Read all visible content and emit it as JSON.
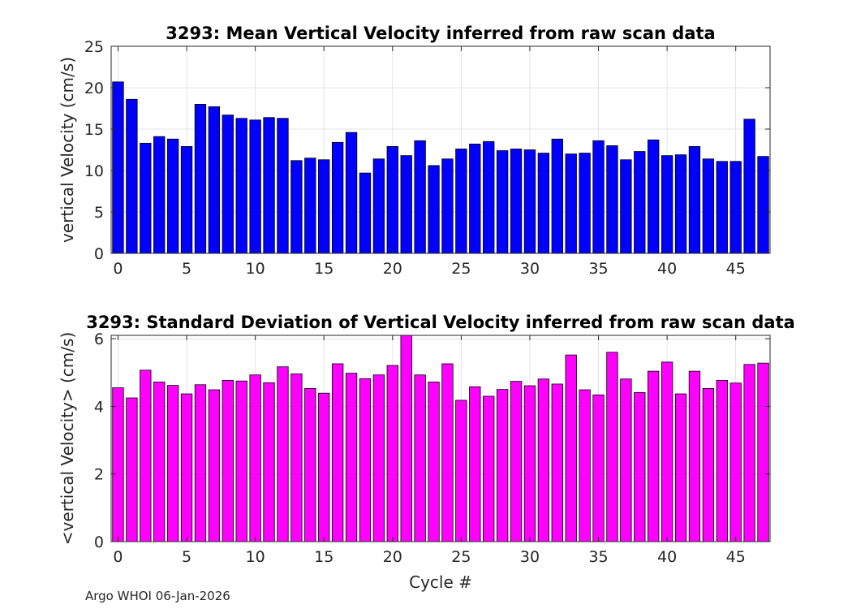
{
  "footer": "Argo WHOI 06-Jan-2026",
  "chart_data": [
    {
      "type": "bar",
      "title": "3293: Mean Vertical Velocity inferred from raw scan data",
      "xlabel": "",
      "ylabel": "vertical Velocity (cm/s)",
      "ylim": [
        0,
        25
      ],
      "xlim": [
        -0.5,
        47.5
      ],
      "yticks": [
        0,
        5,
        10,
        15,
        20,
        25
      ],
      "xticks": [
        0,
        5,
        10,
        15,
        20,
        25,
        30,
        35,
        40,
        45
      ],
      "grid": true,
      "color": "#0000ff",
      "categories": [
        0,
        1,
        2,
        3,
        4,
        5,
        6,
        7,
        8,
        9,
        10,
        11,
        12,
        13,
        14,
        15,
        16,
        17,
        18,
        19,
        20,
        21,
        22,
        23,
        24,
        25,
        26,
        27,
        28,
        29,
        30,
        31,
        32,
        33,
        34,
        35,
        36,
        37,
        38,
        39,
        40,
        41,
        42,
        43,
        44,
        45,
        46,
        47
      ],
      "values": [
        20.7,
        18.6,
        13.3,
        14.1,
        13.8,
        12.9,
        18.0,
        17.7,
        16.7,
        16.3,
        16.1,
        16.4,
        16.3,
        11.2,
        11.5,
        11.3,
        13.4,
        14.6,
        9.7,
        11.4,
        12.9,
        11.8,
        13.6,
        10.6,
        11.4,
        12.6,
        13.2,
        13.5,
        12.4,
        12.6,
        12.5,
        12.1,
        13.8,
        12.0,
        12.1,
        13.6,
        13.0,
        11.3,
        12.3,
        13.7,
        11.8,
        11.9,
        12.9,
        11.4,
        11.1,
        11.1,
        16.2,
        11.7
      ]
    },
    {
      "type": "bar",
      "title": "3293: Standard Deviation of Vertical Velocity inferred from raw scan data",
      "xlabel": "Cycle #",
      "ylabel": "<vertical Velocity> (cm/s)",
      "ylim": [
        0,
        6.1
      ],
      "xlim": [
        -0.5,
        47.5
      ],
      "yticks": [
        0,
        2,
        4,
        6
      ],
      "xticks": [
        0,
        5,
        10,
        15,
        20,
        25,
        30,
        35,
        40,
        45
      ],
      "grid": true,
      "color": "#ff00ff",
      "categories": [
        0,
        1,
        2,
        3,
        4,
        5,
        6,
        7,
        8,
        9,
        10,
        11,
        12,
        13,
        14,
        15,
        16,
        17,
        18,
        19,
        20,
        21,
        22,
        23,
        24,
        25,
        26,
        27,
        28,
        29,
        30,
        31,
        32,
        33,
        34,
        35,
        36,
        37,
        38,
        39,
        40,
        41,
        42,
        43,
        44,
        45,
        46,
        47
      ],
      "values": [
        4.55,
        4.25,
        5.07,
        4.72,
        4.62,
        4.37,
        4.64,
        4.49,
        4.77,
        4.75,
        4.93,
        4.7,
        5.17,
        4.96,
        4.53,
        4.39,
        5.26,
        4.98,
        4.82,
        4.93,
        5.21,
        6.1,
        4.93,
        4.72,
        5.26,
        4.18,
        4.58,
        4.3,
        4.5,
        4.74,
        4.61,
        4.81,
        4.66,
        5.52,
        4.49,
        4.34,
        5.6,
        4.81,
        4.41,
        5.04,
        5.31,
        4.37,
        5.04,
        4.53,
        4.77,
        4.69,
        5.24,
        5.28
      ]
    }
  ]
}
